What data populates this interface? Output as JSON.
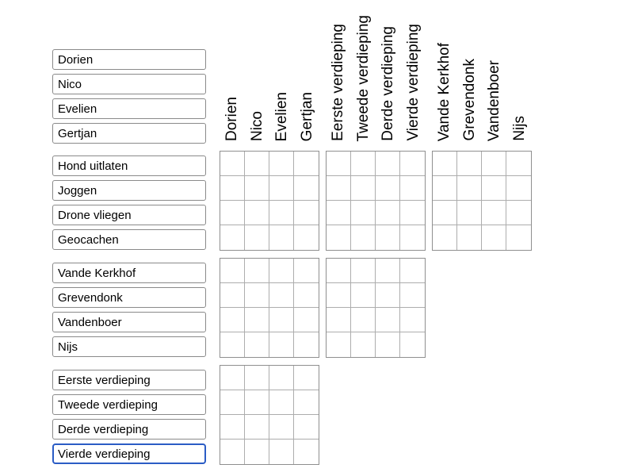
{
  "colors": {
    "background": "#ffffff",
    "text": "#000000",
    "box_border": "#8a8a8a",
    "grid_outer_border": "#8f8f8f",
    "grid_inner_border": "#adadad",
    "focus_border": "#2b5cc5"
  },
  "row_groups": [
    {
      "id": "names",
      "labels": [
        "Dorien",
        "Nico",
        "Evelien",
        "Gertjan"
      ]
    },
    {
      "id": "activities",
      "labels": [
        "Hond uitlaten",
        "Joggen",
        "Drone vliegen",
        "Geocachen"
      ]
    },
    {
      "id": "surnames",
      "labels": [
        "Vande Kerkhof",
        "Grevendonk",
        "Vandenboer",
        "Nijs"
      ]
    },
    {
      "id": "floors",
      "labels": [
        "Eerste verdieping",
        "Tweede verdieping",
        "Derde verdieping",
        "Vierde verdieping"
      ],
      "focused_label_index": 3
    }
  ],
  "column_groups": [
    {
      "id": "names",
      "labels": [
        "Dorien",
        "Nico",
        "Evelien",
        "Gertjan"
      ]
    },
    {
      "id": "floors",
      "labels": [
        "Eerste verdieping",
        "Tweede verdieping",
        "Derde verdieping",
        "Vierde verdieping"
      ]
    },
    {
      "id": "surnames",
      "labels": [
        "Vande Kerkhof",
        "Grevendonk",
        "Vandenboer",
        "Nijs"
      ]
    }
  ],
  "grid": {
    "marks": "none",
    "bands": [
      {
        "rows": "activities",
        "column_blocks": [
          "names",
          "floors",
          "surnames"
        ]
      },
      {
        "rows": "surnames",
        "column_blocks": [
          "names",
          "floors"
        ]
      },
      {
        "rows": "floors",
        "column_blocks": [
          "names"
        ]
      }
    ]
  }
}
